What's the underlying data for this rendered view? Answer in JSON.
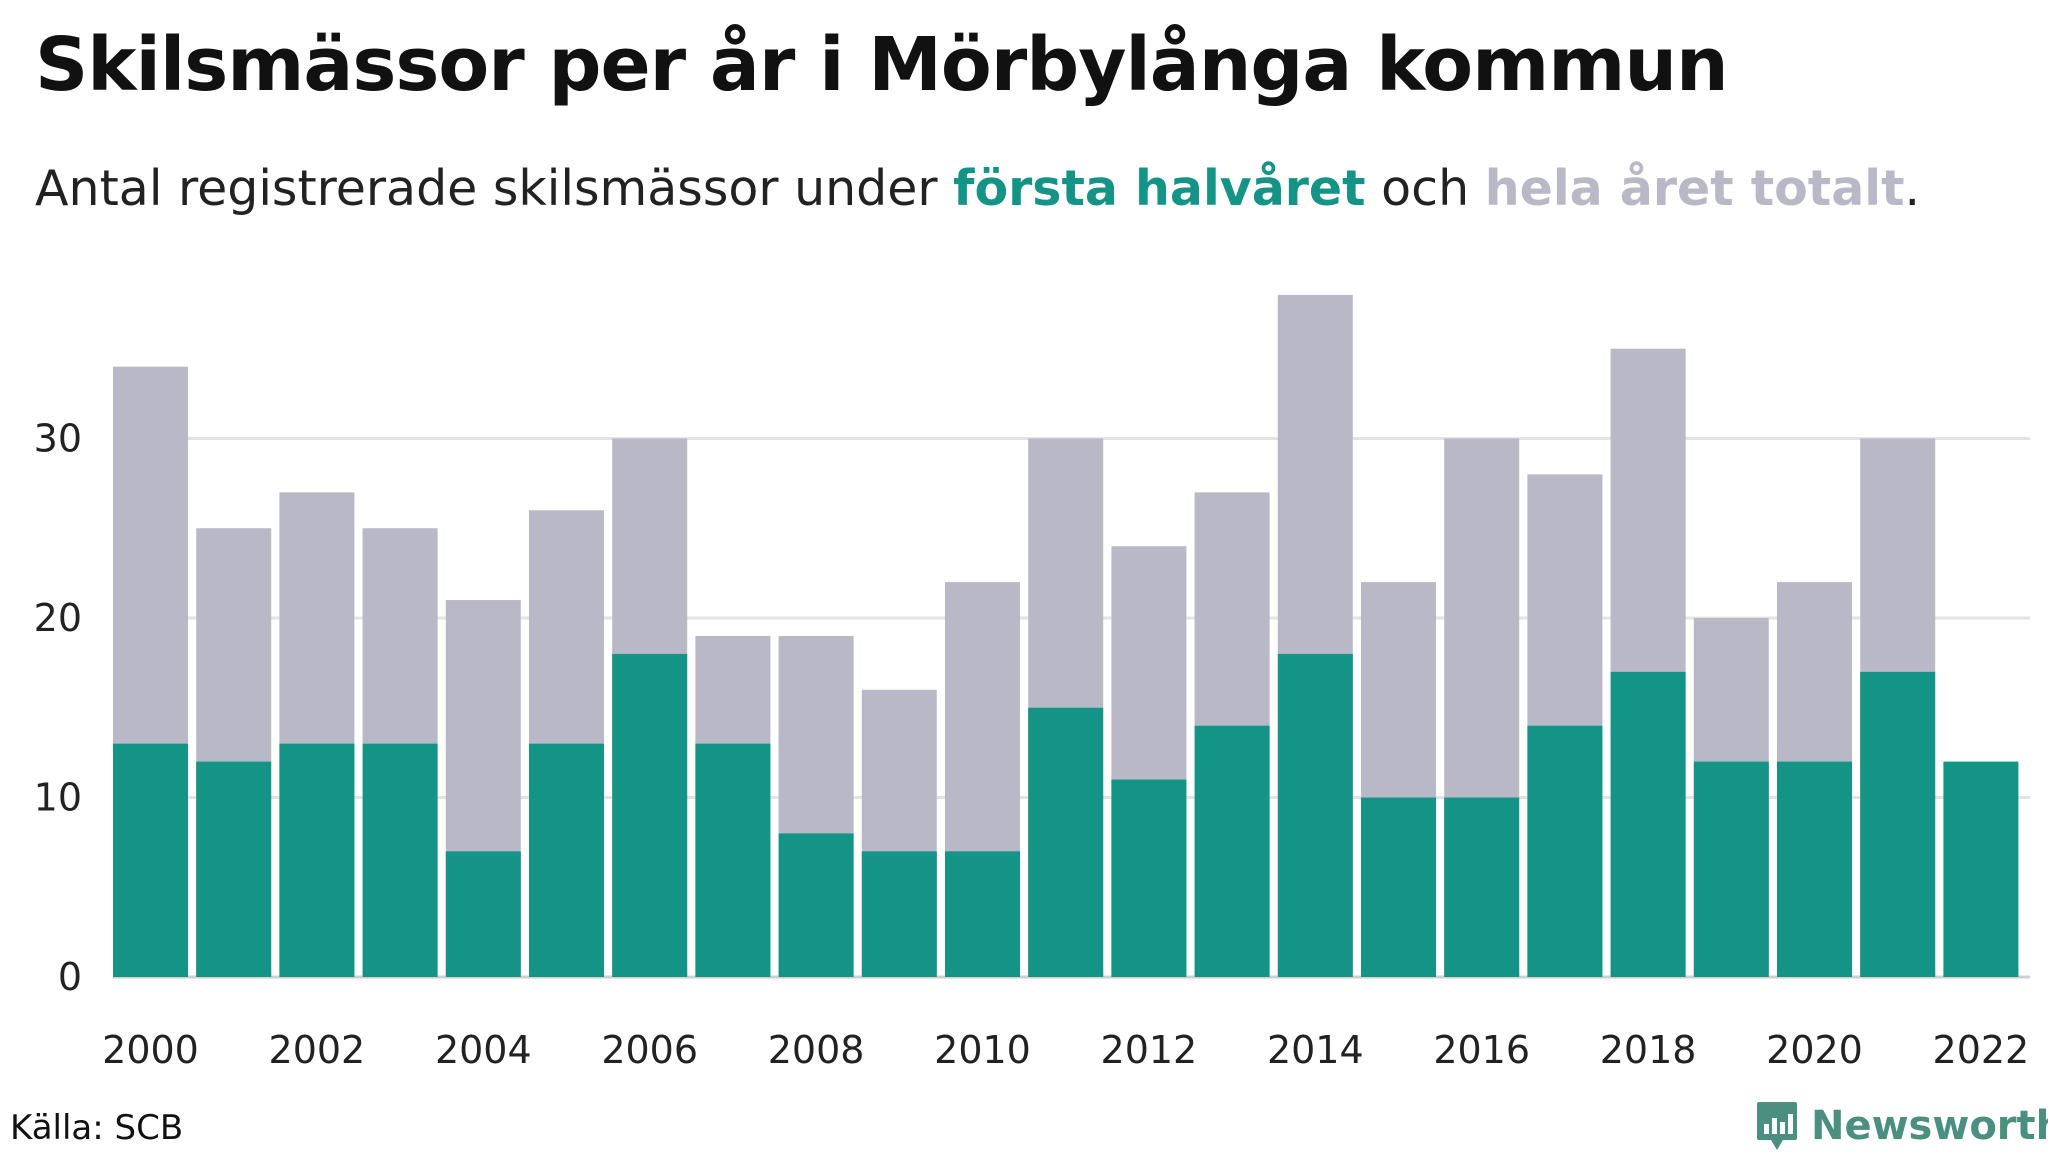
{
  "title": "Skilsmässor per år i Mörbylånga kommun",
  "subtitle": {
    "prefix": "Antal registrerade skilsmässor under ",
    "first_half": "första halvåret",
    "middle": " och ",
    "total": "hela året totalt",
    "suffix": "."
  },
  "colors": {
    "first_half": "#139486",
    "total": "#b9b8c6",
    "grid": "#e3e3e3",
    "logo": "#4a8f7f"
  },
  "source": "Källa: SCB",
  "logo": {
    "text": "Newsworthy",
    "icon": "bar-chart-speech-bubble-icon"
  },
  "chart_data": {
    "type": "bar",
    "stacked": "overlay",
    "categories": [
      "2000",
      "2001",
      "2002",
      "2003",
      "2004",
      "2005",
      "2006",
      "2007",
      "2008",
      "2009",
      "2010",
      "2011",
      "2012",
      "2013",
      "2014",
      "2015",
      "2016",
      "2017",
      "2018",
      "2019",
      "2020",
      "2021",
      "2022"
    ],
    "x_tick_labels": [
      "2000",
      "2002",
      "2004",
      "2006",
      "2008",
      "2010",
      "2012",
      "2014",
      "2016",
      "2018",
      "2020",
      "2022"
    ],
    "series": [
      {
        "key": "total",
        "values": [
          34,
          25,
          27,
          25,
          21,
          26,
          30,
          19,
          19,
          16,
          22,
          30,
          24,
          27,
          38,
          22,
          30,
          28,
          35,
          20,
          22,
          30,
          null
        ]
      },
      {
        "key": "first_half",
        "values": [
          13,
          12,
          13,
          13,
          7,
          13,
          18,
          13,
          8,
          7,
          7,
          15,
          11,
          14,
          18,
          10,
          10,
          14,
          17,
          12,
          12,
          17,
          12
        ]
      }
    ],
    "y_ticks": [
      0,
      10,
      20,
      30
    ],
    "ylim": [
      0,
      38
    ],
    "grid": true,
    "legend": "in subtitle"
  }
}
